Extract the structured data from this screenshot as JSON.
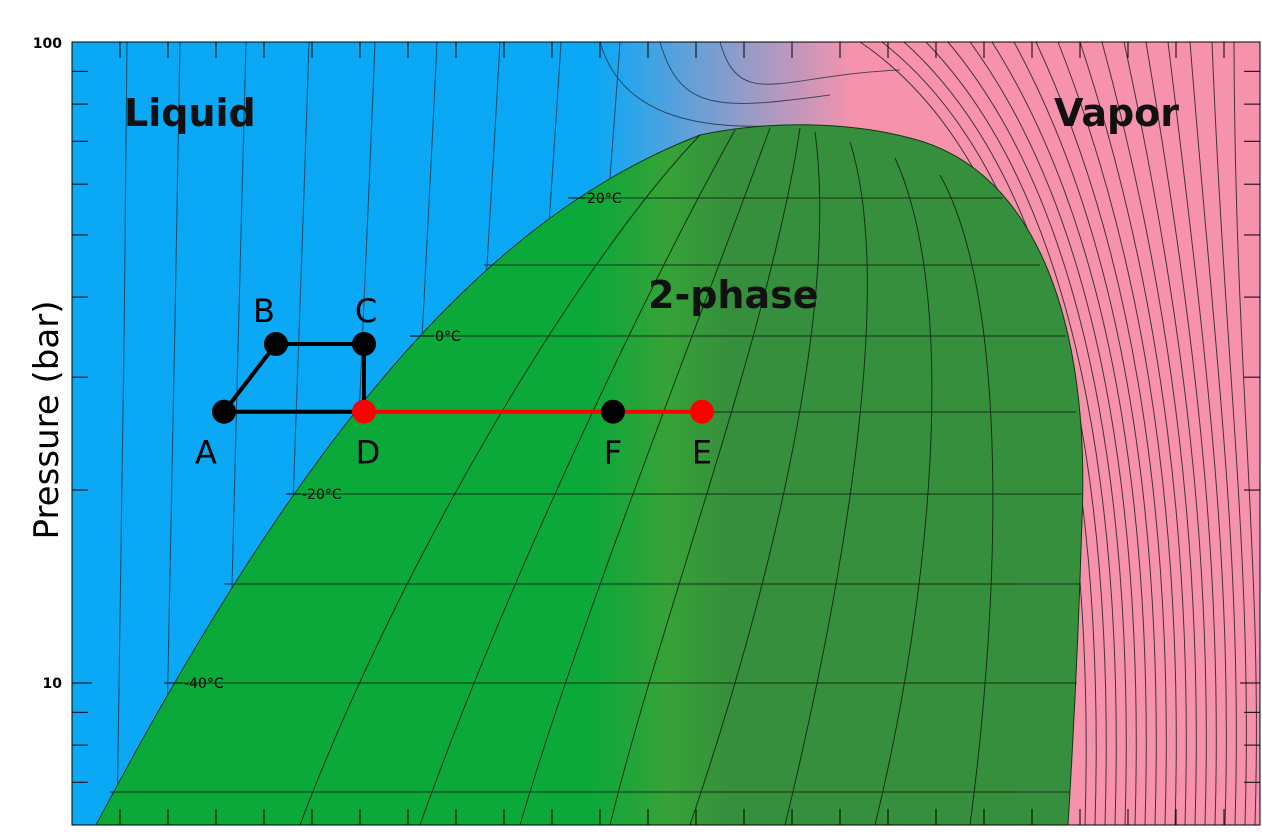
{
  "chart_data": {
    "type": "line",
    "ylabel": "Pressure (bar)",
    "y_scale": "log",
    "ylim": [
      6,
      100
    ],
    "y_ticks": [
      {
        "value": 10,
        "label": "10"
      },
      {
        "value": 100,
        "label": "100"
      }
    ],
    "regions": [
      {
        "name": "Liquid",
        "color": "#0aa8f5"
      },
      {
        "name": "Vapor",
        "color": "#f792ad"
      },
      {
        "name": "2-phase",
        "color": "#0ba83a"
      }
    ],
    "isotherm_labels": [
      {
        "label": "20°C",
        "pressure": 56.8
      },
      {
        "label": "0°C",
        "pressure": 35.2
      },
      {
        "label": "-20°C",
        "pressure": 19.8
      },
      {
        "label": "-40°C",
        "pressure": 10.0
      }
    ],
    "points": [
      {
        "name": "A",
        "pressure": 26.5,
        "color": "#000000"
      },
      {
        "name": "B",
        "pressure": 33.8,
        "color": "#000000"
      },
      {
        "name": "C",
        "pressure": 33.8,
        "color": "#000000"
      },
      {
        "name": "D",
        "pressure": 26.5,
        "color": "#ff0000"
      },
      {
        "name": "F",
        "pressure": 26.5,
        "color": "#000000"
      },
      {
        "name": "E",
        "pressure": 26.5,
        "color": "#ff0000"
      }
    ],
    "paths": [
      {
        "points": [
          "A",
          "B",
          "C",
          "D",
          "A"
        ],
        "color": "#000000"
      },
      {
        "points": [
          "D",
          "F",
          "E"
        ],
        "color": "#ff0000"
      }
    ]
  }
}
